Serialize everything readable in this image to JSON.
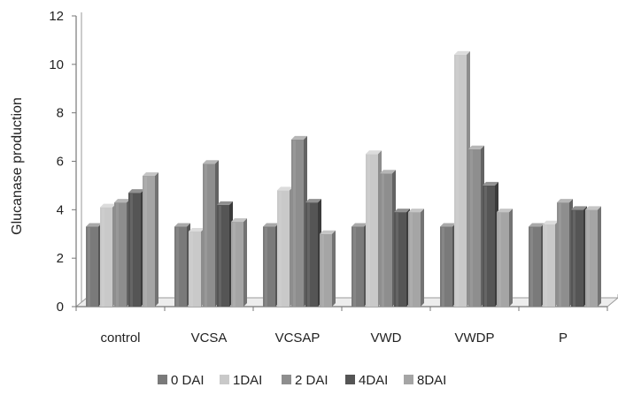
{
  "chart_data": {
    "type": "bar",
    "title": "",
    "xlabel": "",
    "ylabel": "Glucanase production",
    "ylim": [
      0,
      12
    ],
    "yticks": [
      "0",
      "2",
      "4",
      "6",
      "8",
      "10",
      "12"
    ],
    "grid": false,
    "legend_position": "bottom",
    "categories": [
      "control",
      "VCSA",
      "VCSAP",
      "VWD",
      "VWDP",
      "P"
    ],
    "series": [
      {
        "name": "0 DAI",
        "color": "#7a7a7a",
        "values": [
          3.3,
          3.3,
          3.3,
          3.3,
          3.3,
          3.3
        ]
      },
      {
        "name": "1DAI",
        "color": "#c9c9c9",
        "values": [
          4.1,
          3.1,
          4.8,
          6.3,
          10.4,
          3.4
        ]
      },
      {
        "name": "2 DAI",
        "color": "#8e8e8e",
        "values": [
          4.3,
          5.9,
          6.9,
          5.5,
          6.5,
          4.3
        ]
      },
      {
        "name": "4DAI",
        "color": "#555555",
        "values": [
          4.7,
          4.2,
          4.3,
          3.9,
          5.0,
          4.0
        ]
      },
      {
        "name": "8DAI",
        "color": "#a5a5a5",
        "values": [
          5.4,
          3.5,
          3.0,
          3.9,
          3.9,
          4.0
        ]
      }
    ]
  }
}
